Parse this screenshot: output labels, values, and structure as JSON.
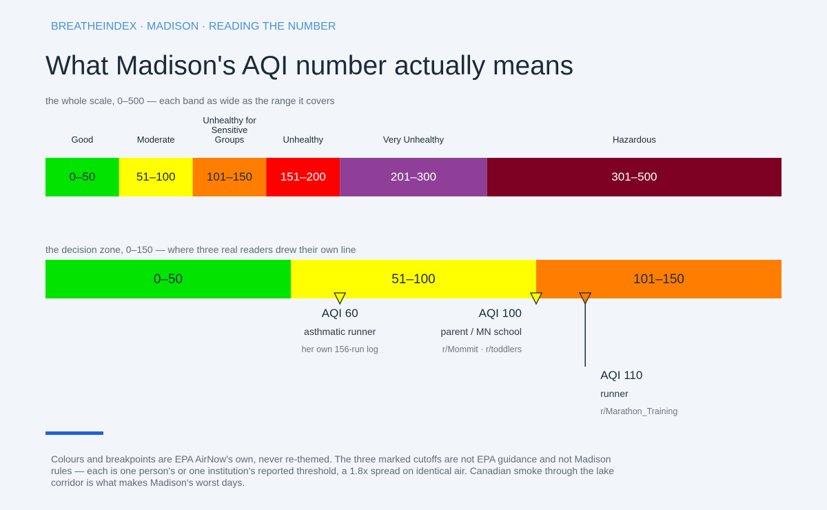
{
  "header": {
    "kicker": "BREATHEINDEX · MADISON · READING THE NUMBER",
    "title": "What Madison's AQI number actually means"
  },
  "sections": {
    "full_scale_caption": "the whole scale, 0–500 — each band as wide as the range it covers",
    "decision_zone_caption": "the decision zone, 0–150 — where three real readers drew their own line"
  },
  "footnote": "Colours and breakpoints are EPA AirNow's own, never re-themed. The three marked cutoffs are not EPA guidance and not Madison rules — each is one person's or one institution's reported threshold, a 1.8x spread on identical air. Canadian smoke through the lake corridor is what makes Madison's worst days.",
  "colors": {
    "accent": "#1f62d8",
    "kicker": "#4a90d9",
    "marker_line": "#1c2a3a"
  },
  "chart_data": [
    {
      "type": "bar",
      "orientation": "horizontal-stacked",
      "xlim": [
        0,
        500
      ],
      "bands": [
        {
          "name": "Good",
          "label": "0–50",
          "from": 0,
          "to": 50,
          "color": "#00e400",
          "text_color": "#1c2a3a"
        },
        {
          "name": "Moderate",
          "label": "51–100",
          "from": 50,
          "to": 100,
          "color": "#ffff00",
          "text_color": "#1c2a3a"
        },
        {
          "name": "Unhealthy for Sensitive Groups",
          "label": "101–150",
          "from": 100,
          "to": 150,
          "color": "#ff7e00",
          "text_color": "#1c2a3a"
        },
        {
          "name": "Unhealthy",
          "label": "151–200",
          "from": 150,
          "to": 200,
          "color": "#ff0000",
          "text_color": "#ffffff"
        },
        {
          "name": "Very Unhealthy",
          "label": "201–300",
          "from": 200,
          "to": 300,
          "color": "#8f3f97",
          "text_color": "#ffffff"
        },
        {
          "name": "Hazardous",
          "label": "301–500",
          "from": 300,
          "to": 500,
          "color": "#7e0023",
          "text_color": "#ffffff"
        }
      ]
    },
    {
      "type": "bar",
      "orientation": "horizontal-stacked",
      "xlim": [
        0,
        150
      ],
      "bands": [
        {
          "label": "0–50",
          "from": 0,
          "to": 50,
          "color": "#00e400",
          "text_color": "#1c2a3a"
        },
        {
          "label": "51–100",
          "from": 50,
          "to": 100,
          "color": "#ffff00",
          "text_color": "#1c2a3a"
        },
        {
          "label": "101–150",
          "from": 100,
          "to": 150,
          "color": "#ff7e00",
          "text_color": "#1c2a3a"
        }
      ],
      "markers": [
        {
          "value": 60,
          "label": "AQI 60",
          "who": "asthmatic runner",
          "source": "her own 156-run log",
          "align": "center",
          "row": 0
        },
        {
          "value": 100,
          "label": "AQI 100",
          "who": "parent / MN school",
          "source": "r/Mommit · r/toddlers",
          "align": "end",
          "row": 0
        },
        {
          "value": 110,
          "label": "AQI 110",
          "who": "runner",
          "source": "r/Marathon_Training",
          "align": "start",
          "row": 1
        }
      ]
    }
  ]
}
